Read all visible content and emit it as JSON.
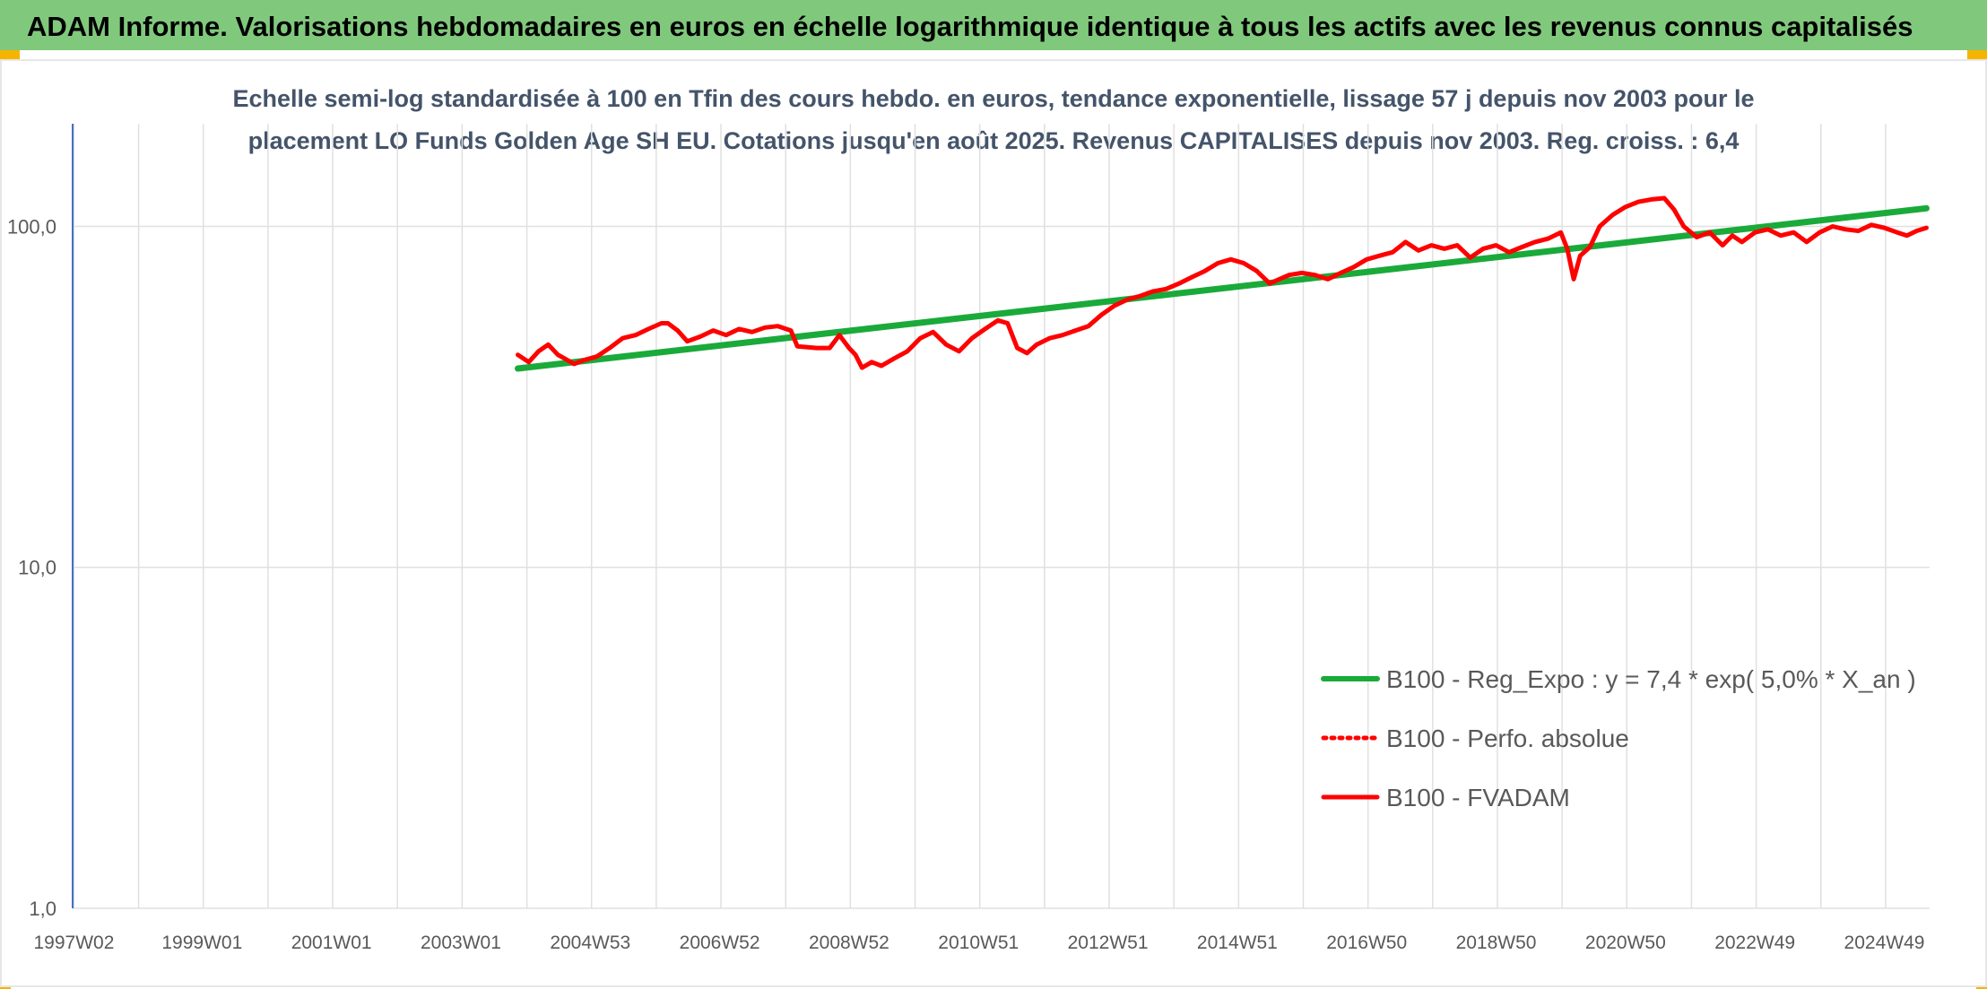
{
  "header": {
    "title": "ADAM Informe. Valorisations hebdomadaires en euros en échelle logarithmique identique à tous les actifs avec les revenus connus capitalisés"
  },
  "colors": {
    "header_bg": "#80c97c",
    "trend": "#1aaa3a",
    "perf": "#ff0000",
    "fvadam": "#ff0000",
    "axis_text": "#595959",
    "subtitle_text": "#44546a",
    "grid": "#e0e0e0",
    "axis_line": "#4472c4",
    "corner_accent": "#f5b400"
  },
  "chart_data": {
    "type": "line",
    "subtitle_line1": "Echelle semi-log standardisée à 100 en Tfin des cours hebdo. en euros, tendance exponentielle, lissage 57 j depuis nov 2003 pour le",
    "subtitle_line2": "placement LO Funds Golden Age SH EU. Cotations jusqu'en août 2025. Revenus CAPITALISES depuis nov 2003. Reg. croiss. : 6,4",
    "y_scale": "log",
    "ylim": [
      1,
      200
    ],
    "yticks": [
      {
        "value": 1,
        "label": "1,0"
      },
      {
        "value": 10,
        "label": "10,0"
      },
      {
        "value": 100,
        "label": "100,0"
      }
    ],
    "xlim": [
      1997.0,
      2025.7
    ],
    "xticks": [
      {
        "value": 1997.02,
        "label": "1997W02"
      },
      {
        "value": 1999.0,
        "label": "1999W01"
      },
      {
        "value": 2001.0,
        "label": "2001W01"
      },
      {
        "value": 2003.0,
        "label": "2003W01"
      },
      {
        "value": 2005.0,
        "label": "2004W53"
      },
      {
        "value": 2007.0,
        "label": "2006W52"
      },
      {
        "value": 2009.0,
        "label": "2008W52"
      },
      {
        "value": 2011.0,
        "label": "2010W51"
      },
      {
        "value": 2013.0,
        "label": "2012W51"
      },
      {
        "value": 2015.0,
        "label": "2014W51"
      },
      {
        "value": 2017.0,
        "label": "2016W50"
      },
      {
        "value": 2019.0,
        "label": "2018W50"
      },
      {
        "value": 2021.0,
        "label": "2020W50"
      },
      {
        "value": 2023.0,
        "label": "2022W49"
      },
      {
        "value": 2025.0,
        "label": "2024W49"
      }
    ],
    "grid": true,
    "legend_position": "bottom-right",
    "series": [
      {
        "name": "B100 - Reg_Expo : y = 7,4 * exp( 5,0% *  X_an )",
        "style": "solid-thick",
        "x": [
          2003.88,
          2025.65
        ],
        "y": [
          38.3,
          113
        ]
      },
      {
        "name": "B100 - Perfo. absolue",
        "style": "dotted",
        "x": [],
        "y": []
      },
      {
        "name": "B100 - FVADAM",
        "style": "solid",
        "x": [
          2003.88,
          2004.05,
          2004.2,
          2004.35,
          2004.5,
          2004.6,
          2004.75,
          2004.9,
          2005.1,
          2005.3,
          2005.5,
          2005.7,
          2005.9,
          2006.1,
          2006.2,
          2006.35,
          2006.5,
          2006.7,
          2006.9,
          2007.1,
          2007.3,
          2007.5,
          2007.7,
          2007.9,
          2008.1,
          2008.2,
          2008.5,
          2008.7,
          2008.85,
          2009.0,
          2009.1,
          2009.2,
          2009.35,
          2009.5,
          2009.7,
          2009.9,
          2010.1,
          2010.3,
          2010.5,
          2010.7,
          2010.9,
          2011.1,
          2011.3,
          2011.45,
          2011.6,
          2011.75,
          2011.9,
          2012.1,
          2012.3,
          2012.5,
          2012.7,
          2012.9,
          2013.1,
          2013.3,
          2013.5,
          2013.7,
          2013.9,
          2014.1,
          2014.3,
          2014.5,
          2014.7,
          2014.9,
          2015.1,
          2015.3,
          2015.5,
          2015.65,
          2015.8,
          2016.0,
          2016.2,
          2016.4,
          2016.6,
          2016.8,
          2017.0,
          2017.2,
          2017.4,
          2017.6,
          2017.8,
          2018.0,
          2018.2,
          2018.4,
          2018.6,
          2018.8,
          2019.0,
          2019.2,
          2019.4,
          2019.6,
          2019.8,
          2020.0,
          2020.1,
          2020.2,
          2020.3,
          2020.45,
          2020.6,
          2020.8,
          2021.0,
          2021.2,
          2021.4,
          2021.6,
          2021.75,
          2021.9,
          2022.1,
          2022.3,
          2022.5,
          2022.65,
          2022.8,
          2023.0,
          2023.2,
          2023.4,
          2023.6,
          2023.8,
          2024.0,
          2024.2,
          2024.4,
          2024.6,
          2024.8,
          2025.0,
          2025.2,
          2025.35,
          2025.5,
          2025.65
        ],
        "y": [
          42,
          40,
          43,
          45,
          42,
          41,
          39.5,
          40.5,
          41.5,
          44,
          47,
          48,
          50,
          52,
          52,
          49.5,
          46,
          47.5,
          49.5,
          48,
          50,
          49,
          50.5,
          51,
          49.5,
          44.5,
          44,
          44,
          48,
          44,
          42,
          38.5,
          40,
          39,
          41,
          43,
          47,
          49,
          45,
          43,
          47,
          50,
          53,
          52,
          44,
          42.5,
          45,
          47,
          48,
          49.5,
          51,
          55,
          58.5,
          61,
          62.5,
          64.5,
          65.5,
          68,
          71,
          74,
          78,
          80,
          78,
          74,
          68,
          70,
          72,
          73,
          72,
          70,
          73,
          76,
          80,
          82,
          84,
          90,
          85,
          88,
          86,
          88,
          81,
          86,
          88,
          84,
          87,
          90,
          92,
          96,
          86,
          70,
          82,
          87,
          100,
          108,
          114,
          118,
          120,
          121,
          112,
          100,
          93,
          96,
          88,
          94,
          90,
          96,
          98,
          94,
          96,
          90,
          96,
          100,
          98,
          97,
          101,
          99,
          96,
          94,
          97,
          99
        ]
      }
    ]
  }
}
